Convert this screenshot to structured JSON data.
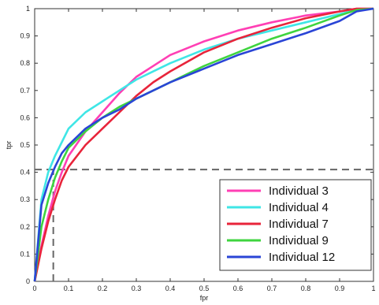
{
  "chart_data": {
    "type": "line",
    "xlabel": "fpr",
    "ylabel": "tpr",
    "xlim": [
      0,
      1
    ],
    "ylim": [
      0,
      1
    ],
    "xticks": [
      "0",
      "0.1",
      "0.2",
      "0.3",
      "0.4",
      "0.5",
      "0.6",
      "0.7",
      "0.8",
      "0.9",
      "1"
    ],
    "yticks": [
      "0",
      "0.1",
      "0.2",
      "0.3",
      "0.4",
      "0.5",
      "0.6",
      "0.7",
      "0.8",
      "0.9",
      "1"
    ],
    "grid": false,
    "legend_position": "bottom-right",
    "reference_lines": {
      "color": "#666666",
      "horizontal_y": 0.41,
      "vertical_x": 0.055
    },
    "series": [
      {
        "name": "Individual 3",
        "color": "#ff3fb4",
        "x": [
          0,
          0.02,
          0.04,
          0.06,
          0.08,
          0.1,
          0.15,
          0.2,
          0.25,
          0.3,
          0.35,
          0.4,
          0.5,
          0.6,
          0.7,
          0.8,
          0.9,
          0.95,
          1
        ],
        "y": [
          0,
          0.13,
          0.24,
          0.33,
          0.4,
          0.46,
          0.55,
          0.62,
          0.69,
          0.75,
          0.79,
          0.83,
          0.88,
          0.92,
          0.95,
          0.975,
          0.99,
          1,
          1
        ]
      },
      {
        "name": "Individual 4",
        "color": "#3fe6e6",
        "x": [
          0,
          0.02,
          0.04,
          0.06,
          0.08,
          0.1,
          0.15,
          0.2,
          0.25,
          0.3,
          0.35,
          0.4,
          0.5,
          0.6,
          0.7,
          0.8,
          0.9,
          0.95,
          1
        ],
        "y": [
          0,
          0.3,
          0.4,
          0.46,
          0.51,
          0.56,
          0.62,
          0.66,
          0.7,
          0.74,
          0.77,
          0.8,
          0.85,
          0.89,
          0.92,
          0.95,
          0.98,
          0.995,
          1
        ]
      },
      {
        "name": "Individual 7",
        "color": "#e8243a",
        "x": [
          0,
          0.02,
          0.04,
          0.06,
          0.08,
          0.1,
          0.15,
          0.2,
          0.25,
          0.3,
          0.35,
          0.4,
          0.5,
          0.6,
          0.7,
          0.8,
          0.9,
          0.95,
          1
        ],
        "y": [
          0,
          0.12,
          0.22,
          0.3,
          0.37,
          0.42,
          0.5,
          0.56,
          0.62,
          0.68,
          0.73,
          0.77,
          0.84,
          0.89,
          0.93,
          0.965,
          0.99,
          1,
          1
        ]
      },
      {
        "name": "Individual 9",
        "color": "#3fd43f",
        "x": [
          0,
          0.02,
          0.04,
          0.06,
          0.08,
          0.1,
          0.15,
          0.2,
          0.25,
          0.3,
          0.35,
          0.4,
          0.5,
          0.6,
          0.7,
          0.8,
          0.9,
          0.95,
          1
        ],
        "y": [
          0,
          0.2,
          0.3,
          0.38,
          0.44,
          0.49,
          0.55,
          0.6,
          0.64,
          0.67,
          0.7,
          0.73,
          0.79,
          0.84,
          0.89,
          0.93,
          0.975,
          0.995,
          1
        ]
      },
      {
        "name": "Individual 12",
        "color": "#2a45d6",
        "x": [
          0,
          0.02,
          0.04,
          0.06,
          0.08,
          0.1,
          0.15,
          0.2,
          0.25,
          0.3,
          0.35,
          0.4,
          0.5,
          0.6,
          0.7,
          0.8,
          0.9,
          0.95,
          1
        ],
        "y": [
          0,
          0.28,
          0.36,
          0.42,
          0.47,
          0.5,
          0.56,
          0.6,
          0.63,
          0.67,
          0.7,
          0.73,
          0.78,
          0.83,
          0.87,
          0.91,
          0.955,
          0.99,
          1
        ]
      }
    ]
  }
}
